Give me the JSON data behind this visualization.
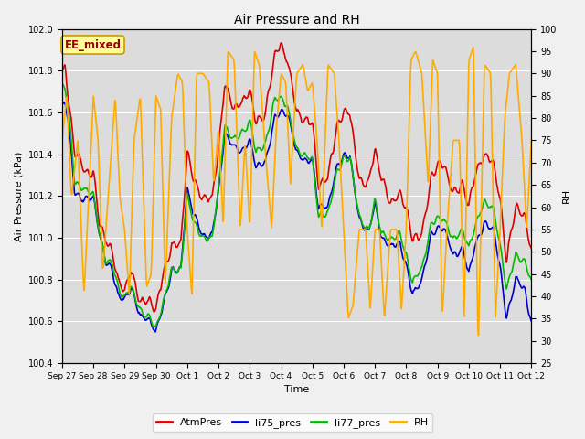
{
  "title": "Air Pressure and RH",
  "xlabel": "Time",
  "ylabel_left": "Air Pressure (kPa)",
  "ylabel_right": "RH",
  "ylim_left": [
    100.4,
    102.0
  ],
  "ylim_right": [
    25,
    100
  ],
  "yticks_left": [
    100.4,
    100.6,
    100.8,
    101.0,
    101.2,
    101.4,
    101.6,
    101.8,
    102.0
  ],
  "yticks_right": [
    25,
    30,
    35,
    40,
    45,
    50,
    55,
    60,
    65,
    70,
    75,
    80,
    85,
    90,
    95,
    100
  ],
  "colors": {
    "AtmPres": "#dd0000",
    "li75_pres": "#0000cc",
    "li77_pres": "#00bb00",
    "RH": "#ffaa00"
  },
  "linewidths": {
    "AtmPres": 1.2,
    "li75_pres": 1.2,
    "li77_pres": 1.2,
    "RH": 1.2
  },
  "annotation_text": "EE_mixed",
  "annotation_color": "#990000",
  "annotation_bg": "#ffff99",
  "annotation_border": "#cc9900",
  "bg_color": "#e8e8e8",
  "plot_bg": "#dcdcdc",
  "grid_color": "#ffffff",
  "tick_labels": [
    "Sep 27",
    "Sep 28",
    "Sep 29",
    "Sep 30",
    "Oct 1",
    "Oct 2",
    "Oct 3",
    "Oct 4",
    "Oct 5",
    "Oct 6",
    "Oct 7",
    "Oct 8",
    "Oct 9",
    "Oct 10",
    "Oct 11",
    "Oct 12"
  ],
  "n_points": 720,
  "fig_facecolor": "#f0f0f0"
}
